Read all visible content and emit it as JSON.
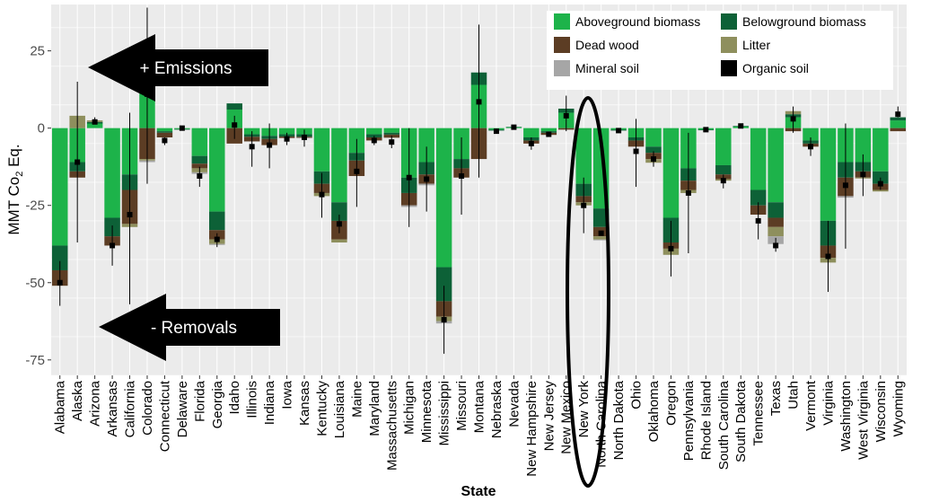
{
  "chart_data": {
    "type": "bar",
    "stacked": true,
    "ylabel_main": "MMT Co",
    "ylabel_sub": "2",
    "ylabel_end": " Eq.",
    "xlabel": "State",
    "ylim": [
      -80,
      40
    ],
    "yticks": [
      25,
      0,
      -25,
      -50,
      -75
    ],
    "grid": true,
    "legend_position": "top-right",
    "categories": [
      "Alabama",
      "Alaska",
      "Arizona",
      "Arkansas",
      "California",
      "Colorado",
      "Connecticut",
      "Delaware",
      "Florida",
      "Georgia",
      "Idaho",
      "Illinois",
      "Indiana",
      "Iowa",
      "Kansas",
      "Kentucky",
      "Louisiana",
      "Maine",
      "Maryland",
      "Massachusetts",
      "Michigan",
      "Minnesota",
      "Mississippi",
      "Missouri",
      "Montana",
      "Nebraska",
      "Nevada",
      "New Hampshire",
      "New Jersey",
      "New Mexico",
      "New York",
      "North Carolina",
      "North Dakota",
      "Ohio",
      "Oklahoma",
      "Oregon",
      "Pennsylvania",
      "Rhode Island",
      "South Carolina",
      "South Dakota",
      "Tennessee",
      "Texas",
      "Utah",
      "Vermont",
      "Virginia",
      "Washington",
      "West Virginia",
      "Wisconsin",
      "Wyoming"
    ],
    "series": [
      {
        "name": "Aboveground biomass",
        "color": "#1db34a",
        "values": [
          -38,
          -11,
          1.5,
          -29,
          -15,
          15,
          -1,
          -0.3,
          -9,
          -27,
          6,
          -2,
          -2.5,
          -2,
          -2,
          -14,
          -24,
          -8,
          -2,
          -1.5,
          -16,
          -11,
          -45,
          -10,
          14,
          -0.5,
          0.3,
          -3,
          -1,
          5,
          -18,
          -26,
          -0.5,
          -3,
          -6,
          -29,
          -13,
          -0.5,
          -12,
          0.5,
          -20,
          -24,
          3.5,
          -4,
          -30,
          -11,
          -11,
          -14,
          2.5
        ]
      },
      {
        "name": "Belowground biomass",
        "color": "#0d6137",
        "values": [
          -8,
          -3,
          0.5,
          -6,
          -5,
          3,
          -0.5,
          -0.2,
          -2.5,
          -6,
          2,
          -0.8,
          -1,
          -0.7,
          -0.8,
          -4,
          -6,
          -2.5,
          -1,
          -0.6,
          -5,
          -4,
          -11,
          -3,
          4,
          -0.3,
          0.1,
          -1,
          -0.5,
          1.3,
          -4,
          -6,
          -0.3,
          -1,
          -2,
          -8,
          -4,
          -0.2,
          -3,
          0.2,
          -5,
          -5,
          1,
          -1,
          -8,
          -5,
          -3,
          -4,
          1
        ]
      },
      {
        "name": "Dead wood",
        "color": "#5c3d24",
        "values": [
          -5,
          -2,
          0,
          -3,
          -11,
          -10,
          -1.5,
          0,
          -1.5,
          -3,
          -5,
          -1.5,
          -2,
          -0.5,
          -0.3,
          -3,
          -6,
          -5,
          -1,
          -1,
          -4,
          -3,
          -5,
          -3,
          -10,
          0,
          0,
          -1,
          -0.7,
          -0.5,
          -2,
          -3,
          0,
          -2,
          -2,
          -2,
          -3,
          0,
          -1.5,
          0,
          -3,
          -3,
          -1,
          -1,
          -4,
          -6,
          -2,
          -2,
          -1
        ]
      },
      {
        "name": "Litter",
        "color": "#8e8f5d",
        "values": [
          0,
          4,
          0.5,
          0,
          -1,
          -0.5,
          0,
          0,
          -1.3,
          -1.5,
          0,
          0,
          0,
          0,
          0,
          -1,
          -1,
          0,
          0,
          0,
          0,
          0,
          -1.5,
          0,
          0,
          0,
          0,
          0,
          0,
          0,
          -1,
          -1,
          0,
          0,
          -1.2,
          -2,
          -1,
          0,
          -0.5,
          0,
          0,
          -3,
          1,
          0,
          -1.5,
          0,
          -0.3,
          -0.5,
          0
        ]
      },
      {
        "name": "Mineral soil",
        "color": "#a6a6a6",
        "values": [
          0,
          0,
          0,
          0,
          0,
          -0.5,
          0,
          0,
          -0.5,
          -0.3,
          0,
          0,
          0,
          0,
          -0.2,
          0,
          0,
          0,
          0,
          0,
          -0.5,
          -0.5,
          -0.7,
          0,
          0,
          0,
          0,
          0,
          0,
          0,
          0,
          -0.3,
          0,
          0,
          0,
          0,
          0,
          0,
          0,
          0,
          0,
          -2.5,
          0,
          0,
          0,
          -0.5,
          0,
          0,
          0
        ]
      },
      {
        "name": "Organic soil",
        "color": "#000000",
        "values": [
          0,
          0,
          0,
          0,
          0,
          0,
          0,
          0,
          0,
          0,
          0,
          0,
          0,
          0,
          0,
          0,
          0,
          0,
          0,
          0,
          0,
          0,
          0,
          0,
          0,
          0,
          0,
          0,
          0,
          0,
          0,
          0,
          0,
          0,
          0,
          0,
          0,
          0,
          0,
          0,
          0,
          0,
          0,
          0,
          0,
          0,
          0,
          0,
          0
        ]
      }
    ],
    "net": [
      -50,
      -11,
      2,
      -38,
      -28,
      11,
      -4,
      0,
      -15.5,
      -36,
      1,
      -6,
      -5.5,
      -3.5,
      -3,
      -21.5,
      -31,
      -14,
      -4,
      -4.5,
      -16,
      -16.5,
      -62,
      -15.5,
      8.5,
      -1,
      0.3,
      -5,
      -2,
      4,
      -25,
      -34,
      -0.8,
      -7.5,
      -10,
      -39,
      -21,
      -0.5,
      -17,
      0.7,
      -30,
      -38,
      3,
      -6,
      -41.5,
      -18.5,
      -15,
      -18,
      4.5
    ],
    "err_low": [
      -57.5,
      -37,
      1.5,
      -44.5,
      -57,
      -18,
      -5.5,
      -0.2,
      -19,
      -38.5,
      -3.5,
      -12.5,
      -13,
      -5.5,
      -6,
      -29,
      -34,
      -25.5,
      -5.5,
      -6.5,
      -32,
      -27,
      -73,
      -28,
      -16,
      -1.3,
      0,
      -7,
      -2.5,
      -1,
      -34,
      -34,
      -1.2,
      -19,
      -12.5,
      -48,
      -40.5,
      -0.8,
      -19.5,
      0.3,
      -36,
      -40,
      -1.5,
      -9,
      -53,
      -39,
      -22,
      -20,
      3.5
    ],
    "err_high": [
      -43,
      15,
      3.5,
      -31.5,
      5,
      39,
      -3,
      0.2,
      -12.5,
      -34,
      4,
      -1,
      1.5,
      -1.5,
      -0.5,
      -14.5,
      -28,
      -3.5,
      -2.5,
      -2.5,
      0,
      -6,
      -51,
      -3,
      33.5,
      -0.7,
      0.6,
      -3,
      -1.5,
      10.5,
      -16,
      -34,
      -0.4,
      3,
      -7.5,
      -30,
      -1.5,
      -0.2,
      -15,
      1,
      -24,
      -35.5,
      7,
      -3,
      -30,
      1.5,
      -8.5,
      -16,
      7
    ],
    "legend": [
      "Aboveground biomass",
      "Belowground biomass",
      "Dead wood",
      "Litter",
      "Mineral soil",
      "Organic soil"
    ]
  },
  "annotations": {
    "emissions_label": "+ Emissions",
    "removals_label": "- Removals"
  }
}
